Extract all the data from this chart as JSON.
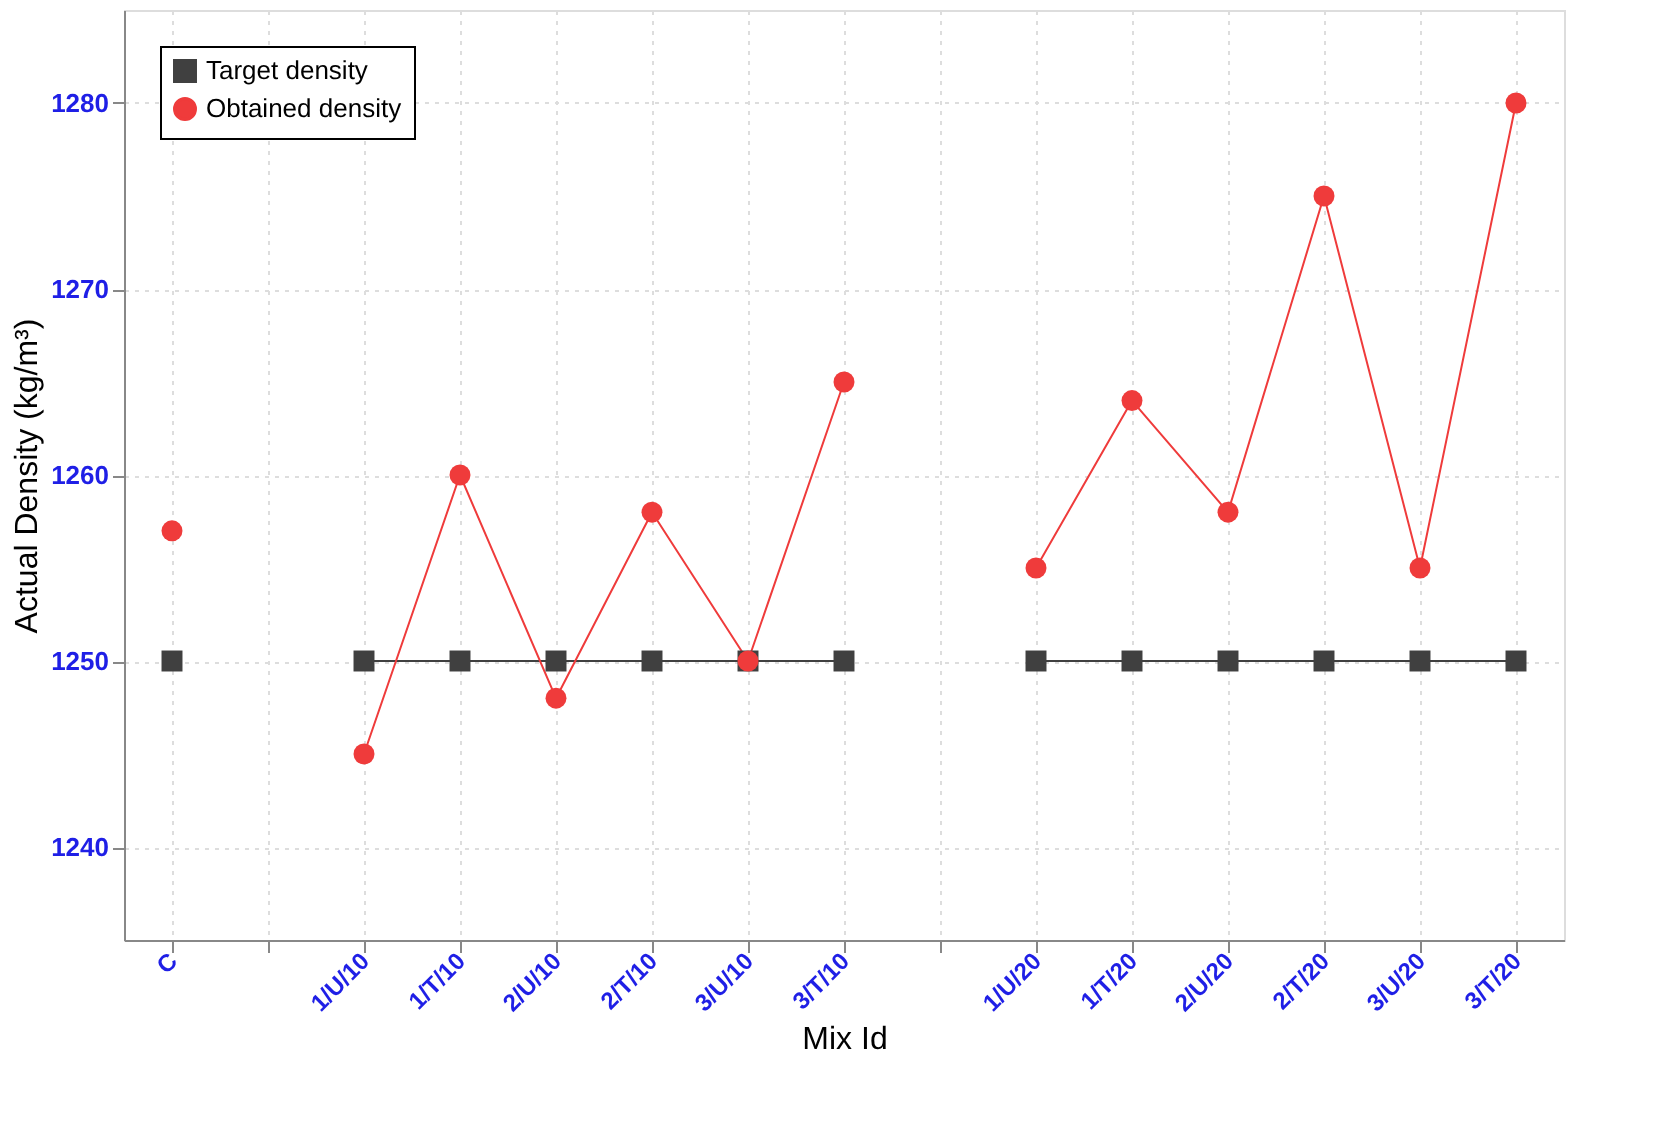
{
  "chart_data": {
    "type": "line",
    "categories": [
      "C",
      null,
      "1/U/10",
      "1/T/10",
      "2/U/10",
      "2/T/10",
      "3/U/10",
      "3/T/10",
      null,
      "1/U/20",
      "1/T/20",
      "2/U/20",
      "2/T/20",
      "3/U/20",
      "3/T/20"
    ],
    "series": [
      {
        "name": "Target density",
        "color": "#404040",
        "marker": "square",
        "values": [
          1250,
          null,
          1250,
          1250,
          1250,
          1250,
          1250,
          1250,
          null,
          1250,
          1250,
          1250,
          1250,
          1250,
          1250
        ]
      },
      {
        "name": "Obtained density",
        "color": "#ef3b3b",
        "marker": "circle",
        "values": [
          1257,
          null,
          1245,
          1260,
          1248,
          1258,
          1250,
          1265,
          null,
          1255,
          1264,
          1258,
          1275,
          1255,
          1280
        ]
      }
    ],
    "xlabel": "Mix Id",
    "ylabel": "Actual Density (kg/m³)",
    "ylim": [
      1235,
      1285
    ],
    "yticks": [
      1240,
      1250,
      1260,
      1270,
      1280
    ],
    "grid": true,
    "legend": "top left",
    "line_style": "solid"
  }
}
